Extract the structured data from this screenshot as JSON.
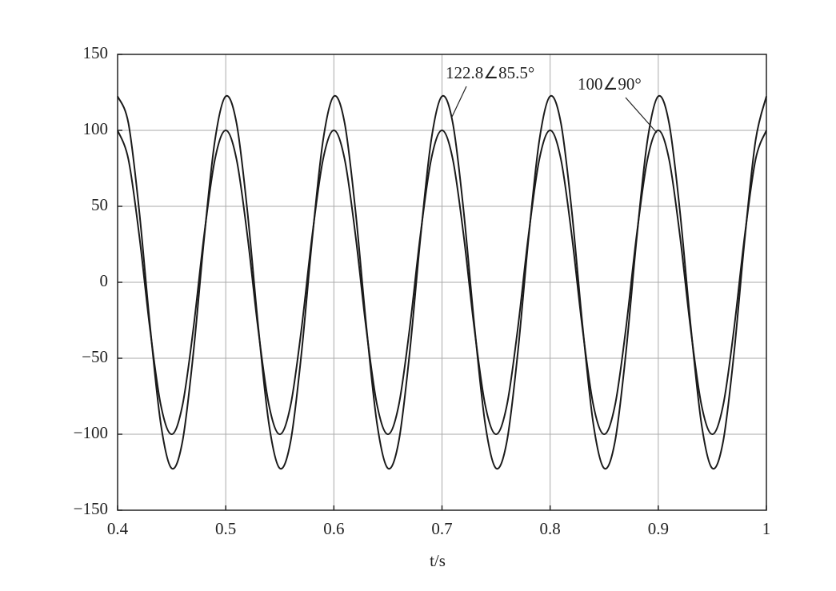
{
  "chart_data": {
    "type": "line",
    "xlabel": "t/s",
    "x": [
      0.4,
      0.41,
      0.42,
      0.43,
      0.44,
      0.45,
      0.46,
      0.47,
      0.48,
      0.49,
      0.5,
      0.51,
      0.52,
      0.53,
      0.54,
      0.55,
      0.56,
      0.57,
      0.58,
      0.59,
      0.6,
      0.61,
      0.62,
      0.63,
      0.64,
      0.65,
      0.66,
      0.67,
      0.68,
      0.69,
      0.7,
      0.71,
      0.72,
      0.73,
      0.74,
      0.75,
      0.76,
      0.77,
      0.78,
      0.79,
      0.8,
      0.81,
      0.82,
      0.83,
      0.84,
      0.85,
      0.86,
      0.87,
      0.88,
      0.89,
      0.9,
      0.91,
      0.92,
      0.93,
      0.94,
      0.95,
      0.96,
      0.97,
      0.98,
      0.99,
      1
    ],
    "series": [
      {
        "name": "122.8∠85.5°",
        "color": "#1a1a1a",
        "values": [
          122.42,
          104.7,
          46.99,
          -28.67,
          -93.38,
          -122.42,
          -104.7,
          -46.99,
          28.67,
          93.38,
          122.42,
          104.7,
          46.99,
          -28.67,
          -93.38,
          -122.42,
          -104.7,
          -46.99,
          28.67,
          93.38,
          122.42,
          104.7,
          46.99,
          -28.67,
          -93.38,
          -122.42,
          -104.7,
          -46.99,
          28.67,
          93.38,
          122.42,
          104.7,
          46.99,
          -28.67,
          -93.38,
          -122.42,
          -104.7,
          -46.99,
          28.67,
          93.38,
          122.42,
          104.7,
          46.99,
          -28.67,
          -93.38,
          -122.42,
          -104.7,
          -46.99,
          28.67,
          93.38,
          122.42,
          104.7,
          46.99,
          -28.67,
          -93.38,
          -122.42,
          -104.7,
          -46.99,
          28.67,
          93.38,
          122.42
        ]
      },
      {
        "name": "100∠90°",
        "color": "#1a1a1a",
        "values": [
          100,
          80.9,
          30.9,
          -30.9,
          -80.9,
          -100,
          -80.9,
          -30.9,
          30.9,
          80.9,
          100,
          80.9,
          30.9,
          -30.9,
          -80.9,
          -100,
          -80.9,
          -30.9,
          30.9,
          80.9,
          100,
          80.9,
          30.9,
          -30.9,
          -80.9,
          -100,
          -80.9,
          -30.9,
          30.9,
          80.9,
          100,
          80.9,
          30.9,
          -30.9,
          -80.9,
          -100,
          -80.9,
          -30.9,
          30.9,
          80.9,
          100,
          80.9,
          30.9,
          -30.9,
          -80.9,
          -100,
          -80.9,
          -30.9,
          30.9,
          80.9,
          100,
          80.9,
          30.9,
          -30.9,
          -80.9,
          -100,
          -80.9,
          -30.9,
          30.9,
          80.9,
          100
        ]
      }
    ],
    "xlim": [
      0.4,
      1
    ],
    "xticks": [
      0.4,
      0.5,
      0.6,
      0.7,
      0.8,
      0.9,
      1
    ],
    "ylim": [
      -150,
      150
    ],
    "yticks": [
      {
        "value": -150,
        "label": "−150"
      },
      {
        "value": -100,
        "label": "−100"
      },
      {
        "value": -50,
        "label": "−50"
      },
      0,
      50,
      100,
      150
    ],
    "grid": true
  }
}
